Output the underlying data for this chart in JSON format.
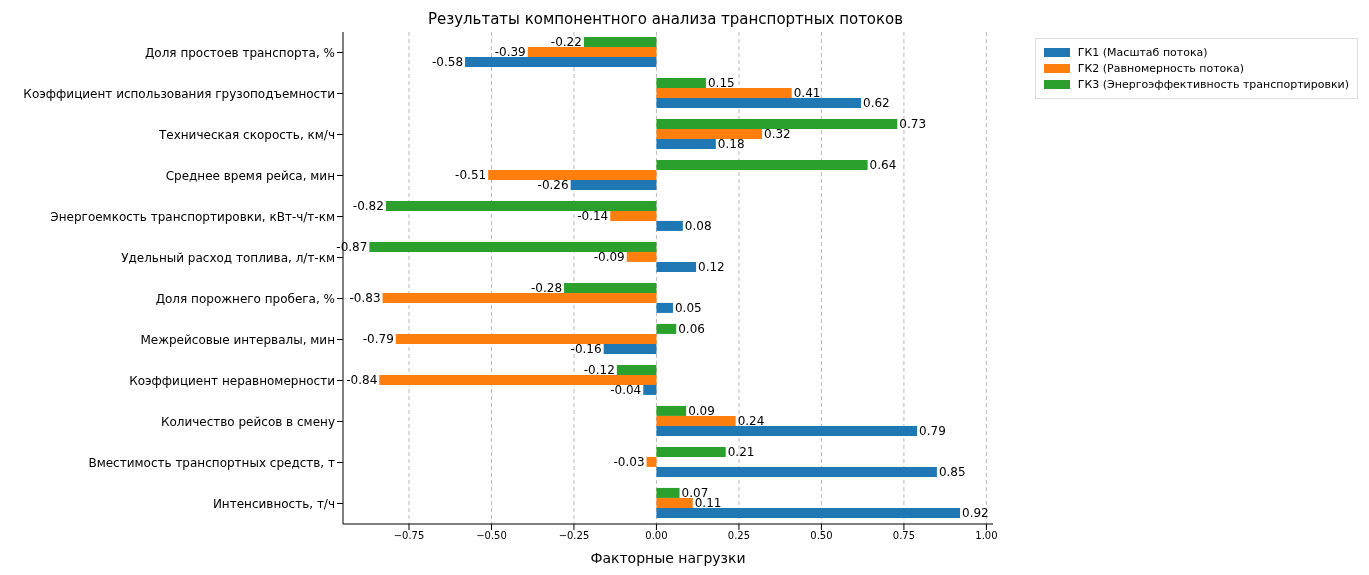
{
  "chart_data": {
    "type": "bar",
    "orientation": "horizontal",
    "title": "Результаты компонентного анализа транспортных потоков",
    "xlabel": "Факторные нагрузки",
    "categories": [
      "Доля простоев транспорта, %",
      "Коэффициент использования грузоподъемности",
      "Техническая скорость, км/ч",
      "Среднее время рейса, мин",
      "Энергоемкость транспортировки, кВт-ч/т-км",
      "Удельный расход топлива, л/т-км",
      "Доля порожнего пробега, %",
      "Межрейсовые интервалы, мин",
      "Коэффициент неравномерности",
      "Количество рейсов в смену",
      "Вместимость транспортных средств, т",
      "Интенсивность, т/ч"
    ],
    "series": [
      {
        "name": "ГК1 (Масштаб потока)",
        "color": "#1f77b4",
        "values": [
          -0.58,
          0.62,
          0.18,
          -0.26,
          0.08,
          0.12,
          0.05,
          -0.16,
          -0.04,
          0.79,
          0.85,
          0.92
        ]
      },
      {
        "name": "ГК2 (Равномерность потока)",
        "color": "#ff7f0e",
        "values": [
          -0.39,
          0.41,
          0.32,
          -0.51,
          -0.14,
          -0.09,
          -0.83,
          -0.79,
          -0.84,
          0.24,
          -0.03,
          0.11
        ]
      },
      {
        "name": "ГК3 (Энергоэффективность транспортировки)",
        "color": "#2ca02c",
        "values": [
          -0.22,
          0.15,
          0.73,
          0.64,
          -0.82,
          -0.87,
          -0.28,
          0.06,
          -0.12,
          0.09,
          0.21,
          0.07
        ]
      }
    ],
    "xlim": [
      -0.95,
      1.02
    ],
    "xticks": [
      {
        "value": -0.75,
        "label": "−0.75"
      },
      {
        "value": -0.5,
        "label": "−0.50"
      },
      {
        "value": -0.25,
        "label": "−0.25"
      },
      {
        "value": 0,
        "label": "0.00"
      },
      {
        "value": 0.25,
        "label": "0.25"
      },
      {
        "value": 0.5,
        "label": "0.50"
      },
      {
        "value": 0.75,
        "label": "0.75"
      },
      {
        "value": 1,
        "label": "1.00"
      }
    ],
    "grid": "x",
    "legend": "top right",
    "data_labels": true
  }
}
